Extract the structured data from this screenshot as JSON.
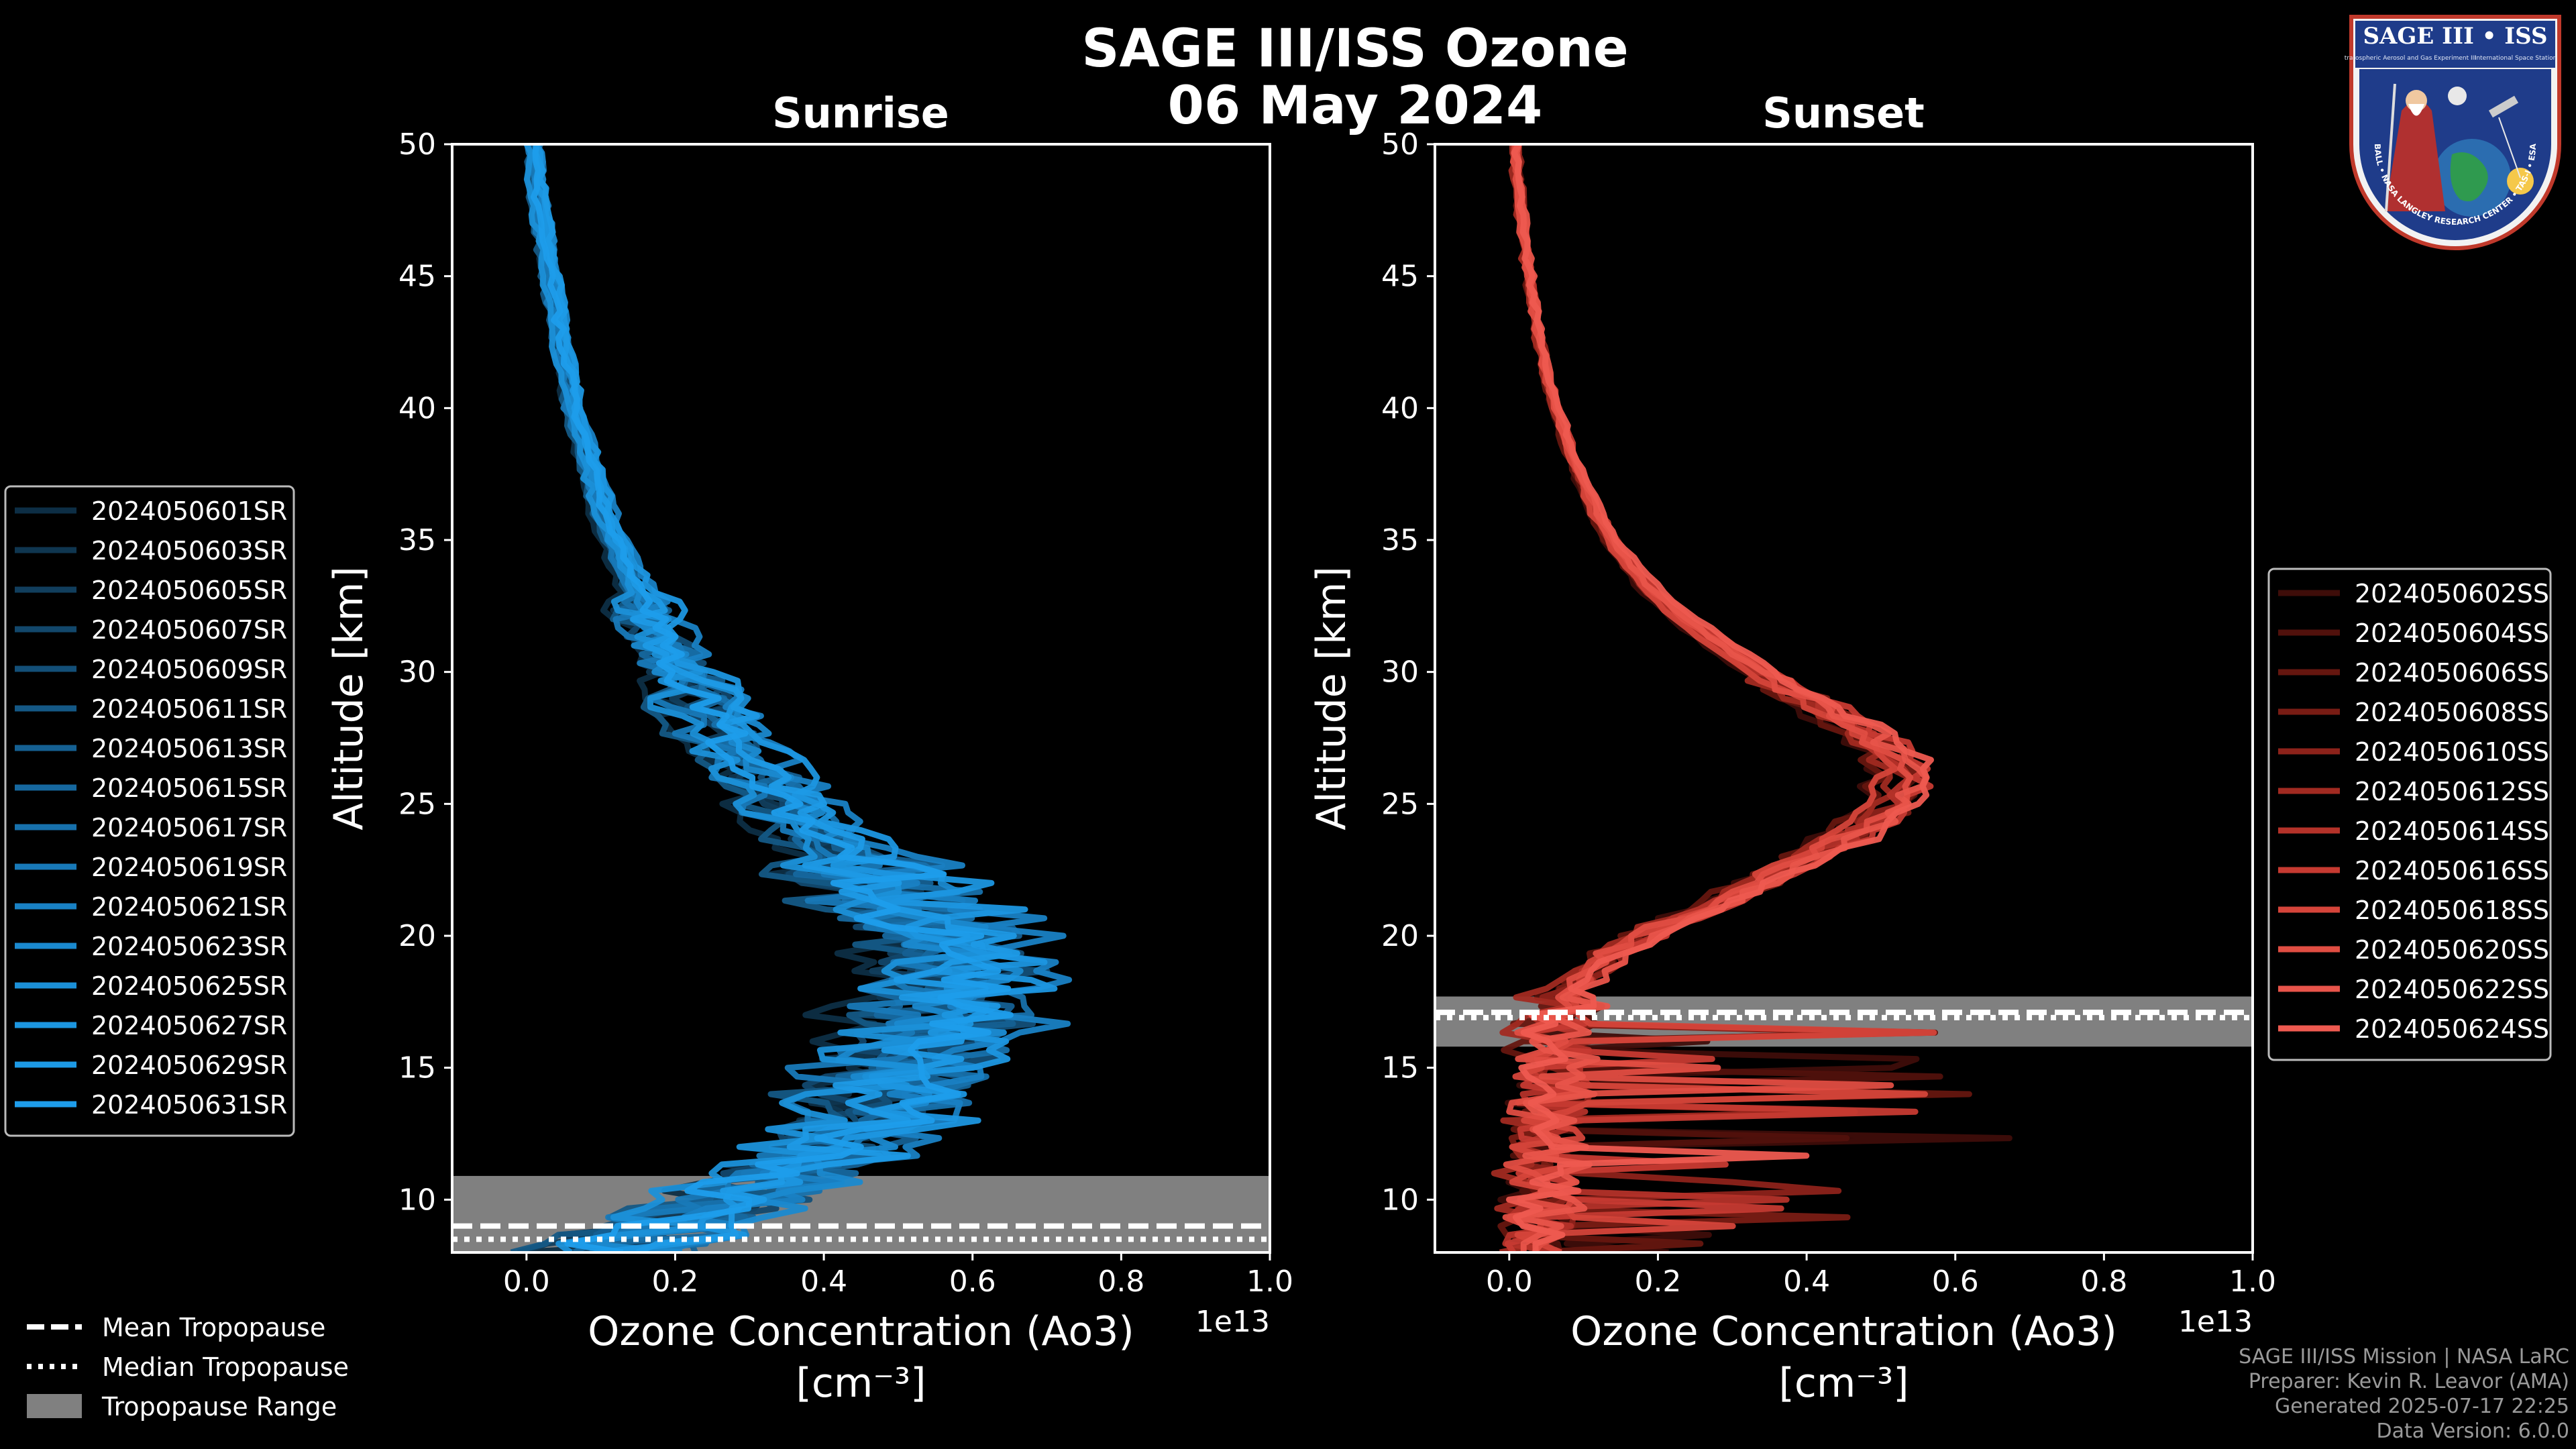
{
  "page": {
    "title_line1": "SAGE III/ISS Ozone",
    "title_line2": "06 May 2024",
    "footer": [
      "SAGE III/ISS Mission | NASA LaRC",
      "Preparer: Kevin R. Leavor (AMA)",
      "Generated 2025-07-17 22:25",
      "Data Version: 6.0.0"
    ],
    "badge": {
      "title": "SAGE III • ISS",
      "subtitle": "Stratospheric Aerosol and Gas Experiment III",
      "iss_label": "International Space Station",
      "ring_text": "BALL • NASA LANGLEY RESEARCH CENTER • TAS-I • ESA"
    }
  },
  "chart_data": [
    {
      "type": "line",
      "id": "sunrise",
      "title": "Sunrise",
      "xlabel": "Ozone Concentration (Ao3)",
      "xunit": "[cm⁻³]",
      "ylabel": "Altitude [km]",
      "xlim": [
        -0.1,
        1.0
      ],
      "ylim": [
        8,
        50
      ],
      "x_multiplier": "1e13",
      "xticks": [
        0.0,
        0.2,
        0.4,
        0.6,
        0.8,
        1.0
      ],
      "xtick_labels": [
        "0.0",
        "0.2",
        "0.4",
        "0.6",
        "0.8",
        "1.0"
      ],
      "yticks": [
        10,
        15,
        20,
        25,
        30,
        35,
        40,
        45,
        50
      ],
      "ytick_labels": [
        "10",
        "15",
        "20",
        "25",
        "30",
        "35",
        "40",
        "45",
        "50"
      ],
      "tropopause": {
        "mean": 9.0,
        "median": 8.5,
        "range": [
          8.0,
          10.9
        ]
      },
      "base_profile": {
        "altitude": [
          8,
          9,
          10,
          11,
          12,
          13,
          14,
          15,
          16,
          17,
          18,
          19,
          20,
          21,
          22,
          23,
          24,
          25,
          26,
          27,
          28,
          29,
          30,
          31,
          32,
          33,
          34,
          35,
          36,
          37,
          38,
          39,
          40,
          41,
          42,
          43,
          44,
          45,
          46,
          47,
          48,
          49,
          50
        ],
        "value": [
          0.1,
          0.18,
          0.26,
          0.34,
          0.4,
          0.43,
          0.46,
          0.48,
          0.52,
          0.54,
          0.55,
          0.55,
          0.53,
          0.49,
          0.45,
          0.41,
          0.37,
          0.33,
          0.3,
          0.27,
          0.24,
          0.22,
          0.2,
          0.18,
          0.16,
          0.145,
          0.13,
          0.115,
          0.1,
          0.09,
          0.08,
          0.07,
          0.06,
          0.055,
          0.048,
          0.042,
          0.036,
          0.03,
          0.024,
          0.019,
          0.014,
          0.01,
          0.007
        ]
      },
      "series": [
        {
          "name": "2024050601SR",
          "color": "#0d2e45",
          "scale": 0.88,
          "offset": 0.0
        },
        {
          "name": "2024050603SR",
          "color": "#0f3650",
          "scale": 0.95,
          "offset": 0.02
        },
        {
          "name": "2024050605SR",
          "color": "#113e5d",
          "scale": 1.05,
          "offset": -0.02
        },
        {
          "name": "2024050607SR",
          "color": "#12476b",
          "scale": 0.92,
          "offset": 0.04
        },
        {
          "name": "2024050609SR",
          "color": "#134f78",
          "scale": 1.1,
          "offset": 0.0
        },
        {
          "name": "2024050611SR",
          "color": "#145885",
          "scale": 0.98,
          "offset": -0.03
        },
        {
          "name": "2024050613SR",
          "color": "#156092",
          "scale": 1.02,
          "offset": 0.03
        },
        {
          "name": "2024050615SR",
          "color": "#16689f",
          "scale": 0.9,
          "offset": 0.05
        },
        {
          "name": "2024050617SR",
          "color": "#1771ac",
          "scale": 1.08,
          "offset": 0.01
        },
        {
          "name": "2024050619SR",
          "color": "#1879b8",
          "scale": 0.96,
          "offset": -0.01
        },
        {
          "name": "2024050621SR",
          "color": "#1981c4",
          "scale": 1.15,
          "offset": 0.02
        },
        {
          "name": "2024050623SR",
          "color": "#1a89cf",
          "scale": 0.93,
          "offset": 0.06
        },
        {
          "name": "2024050625SR",
          "color": "#1b90d8",
          "scale": 1.04,
          "offset": -0.04
        },
        {
          "name": "2024050627SR",
          "color": "#1c96e0",
          "scale": 1.12,
          "offset": 0.03
        },
        {
          "name": "2024050629SR",
          "color": "#1d9ae6",
          "scale": 0.99,
          "offset": 0.05
        },
        {
          "name": "2024050631SR",
          "color": "#1e9deb",
          "scale": 1.06,
          "offset": 0.0
        }
      ]
    },
    {
      "type": "line",
      "id": "sunset",
      "title": "Sunset",
      "xlabel": "Ozone Concentration (Ao3)",
      "xunit": "[cm⁻³]",
      "ylabel": "Altitude [km]",
      "xlim": [
        -0.1,
        1.0
      ],
      "ylim": [
        8,
        50
      ],
      "x_multiplier": "1e13",
      "xticks": [
        0.0,
        0.2,
        0.4,
        0.6,
        0.8,
        1.0
      ],
      "xtick_labels": [
        "0.0",
        "0.2",
        "0.4",
        "0.6",
        "0.8",
        "1.0"
      ],
      "yticks": [
        10,
        15,
        20,
        25,
        30,
        35,
        40,
        45,
        50
      ],
      "ytick_labels": [
        "10",
        "15",
        "20",
        "25",
        "30",
        "35",
        "40",
        "45",
        "50"
      ],
      "tropopause": {
        "mean": 17.1,
        "median": 16.9,
        "range": [
          15.8,
          17.7
        ]
      },
      "base_profile": {
        "altitude": [
          8,
          9,
          10,
          11,
          12,
          13,
          14,
          15,
          16,
          17,
          18,
          19,
          20,
          21,
          22,
          23,
          24,
          25,
          26,
          27,
          28,
          29,
          30,
          31,
          32,
          33,
          34,
          35,
          36,
          37,
          38,
          39,
          40,
          41,
          42,
          43,
          44,
          45,
          46,
          47,
          48,
          49,
          50
        ],
        "value": [
          0.03,
          0.03,
          0.04,
          0.04,
          0.04,
          0.05,
          0.05,
          0.05,
          0.05,
          0.06,
          0.08,
          0.12,
          0.18,
          0.25,
          0.33,
          0.4,
          0.46,
          0.51,
          0.52,
          0.5,
          0.45,
          0.39,
          0.33,
          0.28,
          0.23,
          0.19,
          0.16,
          0.135,
          0.115,
          0.1,
          0.085,
          0.073,
          0.062,
          0.052,
          0.044,
          0.037,
          0.031,
          0.026,
          0.021,
          0.017,
          0.013,
          0.01,
          0.008
        ]
      },
      "series": [
        {
          "name": "2024050602SS",
          "color": "#3e0d09",
          "scale": 0.95,
          "offset": 0.0
        },
        {
          "name": "2024050604SS",
          "color": "#51110c",
          "scale": 1.02,
          "offset": 0.01
        },
        {
          "name": "2024050606SS",
          "color": "#65160f",
          "scale": 0.98,
          "offset": -0.01
        },
        {
          "name": "2024050608SS",
          "color": "#791c14",
          "scale": 1.05,
          "offset": 0.0
        },
        {
          "name": "2024050610SS",
          "color": "#8d221a",
          "scale": 0.97,
          "offset": 0.02
        },
        {
          "name": "2024050612SS",
          "color": "#a12a21",
          "scale": 1.03,
          "offset": -0.02
        },
        {
          "name": "2024050614SS",
          "color": "#b43229",
          "scale": 1.0,
          "offset": 0.01
        },
        {
          "name": "2024050616SS",
          "color": "#c63a31",
          "scale": 1.07,
          "offset": 0.0
        },
        {
          "name": "2024050618SS",
          "color": "#d5443a",
          "scale": 0.96,
          "offset": 0.01
        },
        {
          "name": "2024050620SS",
          "color": "#e04d42",
          "scale": 1.04,
          "offset": -0.01
        },
        {
          "name": "2024050622SS",
          "color": "#e8544a",
          "scale": 1.01,
          "offset": 0.02
        },
        {
          "name": "2024050624SS",
          "color": "#ee5a50",
          "scale": 1.09,
          "offset": 0.0
        }
      ]
    }
  ],
  "tropopause_legend": [
    {
      "name": "Mean Tropopause",
      "style": "dashed"
    },
    {
      "name": "Median Tropopause",
      "style": "dotted"
    },
    {
      "name": "Tropopause Range",
      "style": "patch"
    }
  ],
  "colors": {
    "background": "#000000",
    "axes": "#ffffff",
    "tropopause_fill": "#808080",
    "legend_border": "#bbbbbb"
  }
}
